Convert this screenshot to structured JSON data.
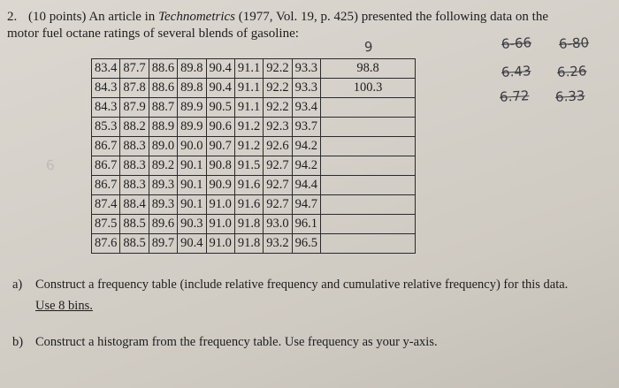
{
  "problem": {
    "number": "2.",
    "intro_before": "(10 points) An article in",
    "journal": "Technometrics",
    "intro_after": "(1977, Vol. 19, p. 425) presented the following data on the motor fuel octane ratings of several blends of gasoline:",
    "table": {
      "rows": [
        [
          "83.4",
          "87.7",
          "88.6",
          "89.8",
          "90.4",
          "91.1",
          "92.2",
          "93.3",
          "98.8"
        ],
        [
          "84.3",
          "87.8",
          "88.6",
          "89.8",
          "90.4",
          "91.1",
          "92.2",
          "93.3",
          "100.3"
        ],
        [
          "84.3",
          "87.9",
          "88.7",
          "89.9",
          "90.5",
          "91.1",
          "92.2",
          "93.4"
        ],
        [
          "85.3",
          "88.2",
          "88.9",
          "89.9",
          "90.6",
          "91.2",
          "92.3",
          "93.7"
        ],
        [
          "86.7",
          "88.3",
          "89.0",
          "90.0",
          "90.7",
          "91.2",
          "92.6",
          "94.2"
        ],
        [
          "86.7",
          "88.3",
          "89.2",
          "90.1",
          "90.8",
          "91.5",
          "92.7",
          "94.2"
        ],
        [
          "86.7",
          "88.3",
          "89.3",
          "90.1",
          "90.9",
          "91.6",
          "92.7",
          "94.4"
        ],
        [
          "87.4",
          "88.4",
          "89.3",
          "90.1",
          "91.0",
          "91.6",
          "92.7",
          "94.7"
        ],
        [
          "87.5",
          "88.5",
          "89.6",
          "90.3",
          "91.0",
          "91.8",
          "93.0",
          "96.1"
        ],
        [
          "87.6",
          "88.5",
          "89.7",
          "90.4",
          "91.0",
          "91.8",
          "93.2",
          "96.5"
        ]
      ]
    },
    "questions": [
      {
        "label": "a)",
        "text": "Construct a frequency table (include relative frequency and cumulative relative frequency) for this data.",
        "emphasis": "Use 8 bins."
      },
      {
        "label": "b)",
        "text": "Construct a histogram from the frequency table. Use frequency as your y-axis.",
        "emphasis": ""
      }
    ]
  },
  "handwriting": [
    "9",
    "6-66",
    "6-80",
    "6.43",
    "6.26",
    "6.72",
    "6.33",
    "6"
  ]
}
